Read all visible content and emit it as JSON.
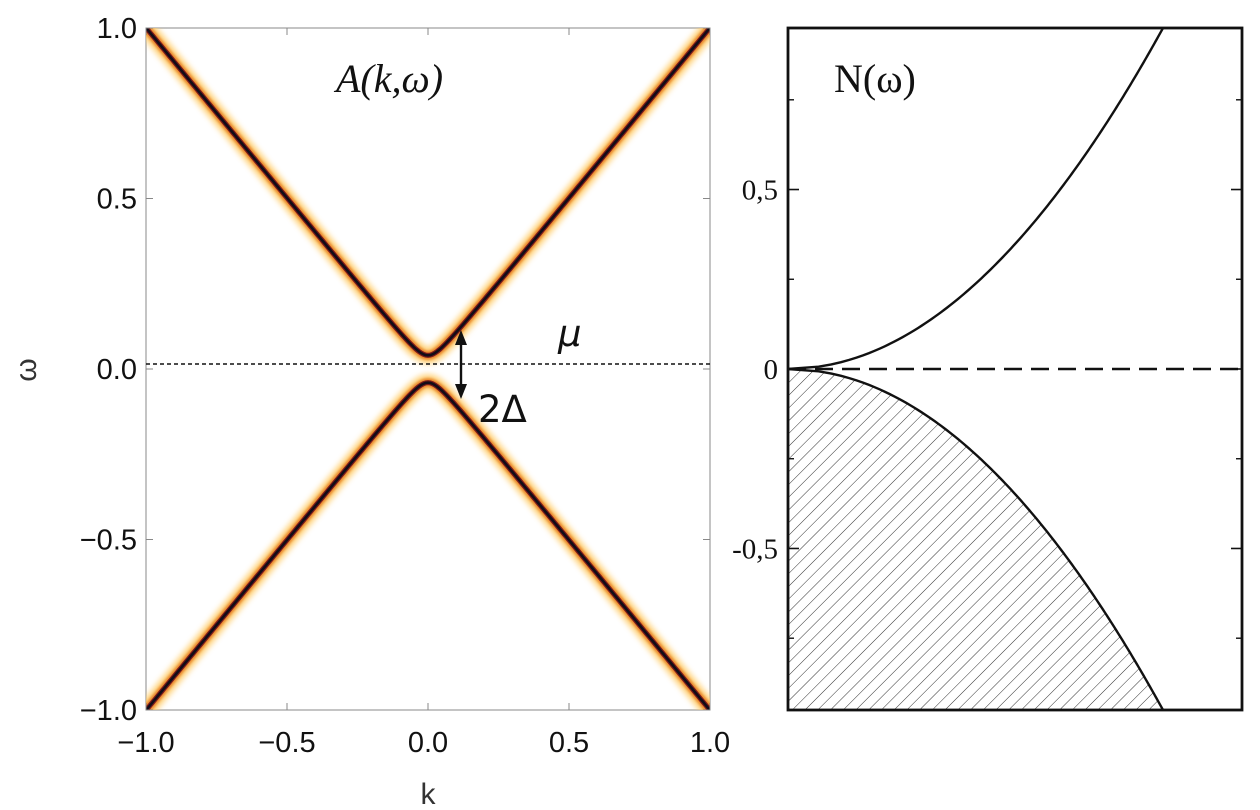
{
  "chart_data": [
    {
      "type": "heatmap",
      "title": "A(k,ω)",
      "xlabel": "k",
      "ylabel": "ω",
      "xlim": [
        -1.0,
        1.0
      ],
      "ylim": [
        -1.0,
        1.0
      ],
      "x_ticks": [
        "−1.0",
        "−0.5",
        "0.0",
        "0.5",
        "1.0"
      ],
      "y_ticks": [
        "−1.0",
        "−0.5",
        "0.0",
        "0.5",
        "1.0"
      ],
      "gap_delta": 0.04,
      "bands": [
        {
          "name": "upper band",
          "formula": "ω = +sqrt(k² + Δ²)"
        },
        {
          "name": "lower band",
          "formula": "ω = −sqrt(k² + Δ²)"
        }
      ],
      "chemical_potential": 0.0,
      "annotations": {
        "mu": "μ",
        "gap": "2Δ"
      }
    },
    {
      "type": "line",
      "title": "N(ω)",
      "xlabel": "",
      "ylabel": "",
      "ylim": [
        -0.95,
        0.95
      ],
      "y_ticks": [
        "-0,5",
        "0",
        "0,5"
      ],
      "curve": "N(ω) ∝ sqrt(|ω|)",
      "filled_region": "ω < 0 (hatched, occupied states)",
      "fermi_level": 0.0
    }
  ]
}
